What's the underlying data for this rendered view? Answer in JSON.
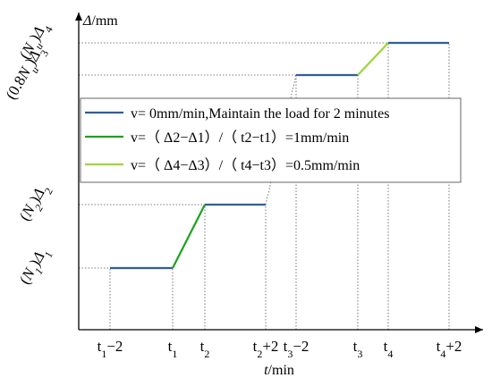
{
  "chart_data": {
    "type": "line",
    "axes": {
      "y_title": {
        "sym": "Δ",
        "unit": "/mm"
      },
      "x_title": {
        "sym": "t",
        "unit": "/min"
      }
    },
    "x_ticks": [
      {
        "base": "t",
        "sub": "1",
        "suffix": "−2"
      },
      {
        "base": "t",
        "sub": "1",
        "suffix": ""
      },
      {
        "base": "t",
        "sub": "2",
        "suffix": ""
      },
      {
        "base": "t",
        "sub": "2",
        "suffix": "+2"
      },
      {
        "base": "t",
        "sub": "3",
        "suffix": "−2"
      },
      {
        "base": "t",
        "sub": "3",
        "suffix": ""
      },
      {
        "base": "t",
        "sub": "4",
        "suffix": ""
      },
      {
        "base": "t",
        "sub": "4",
        "suffix": "+2"
      }
    ],
    "y_levels": [
      {
        "pre": "(",
        "N": "N",
        "Nsub": "1",
        "post": ")Δ",
        "sub": "1"
      },
      {
        "pre": "(",
        "N": "N",
        "Nsub": "2",
        "post": ")Δ",
        "sub": "2"
      },
      {
        "pre": "(0.8",
        "N": "N",
        "Nsub": "u",
        "post": ")Δ",
        "sub": "3"
      },
      {
        "pre": "(",
        "N": "N",
        "Nsub": "u",
        "post": ")Δ",
        "sub": "4"
      }
    ],
    "segments": [
      {
        "from": [
          0,
          0
        ],
        "to": [
          1,
          0
        ],
        "style": "hold"
      },
      {
        "from": [
          1,
          0
        ],
        "to": [
          2,
          1
        ],
        "style": "fast"
      },
      {
        "from": [
          2,
          1
        ],
        "to": [
          3,
          1
        ],
        "style": "hold"
      },
      {
        "from": [
          4,
          2
        ],
        "to": [
          5,
          2
        ],
        "style": "hold"
      },
      {
        "from": [
          5,
          2
        ],
        "to": [
          6,
          3
        ],
        "style": "slow"
      },
      {
        "from": [
          6,
          3
        ],
        "to": [
          7,
          3
        ],
        "style": "hold"
      }
    ],
    "colors": {
      "hold": "#2e5e9e",
      "fast": "#1aa31a",
      "slow": "#9ad834"
    },
    "legend": [
      {
        "style": "hold",
        "text": "v= 0mm/min,Maintain the load for 2 minutes"
      },
      {
        "style": "fast",
        "text": "v=（ Δ2−Δ1）/（ t2−t1）=1mm/min"
      },
      {
        "style": "slow",
        "text": "v=（ Δ4−Δ3）/（ t4−t3）=0.5mm/min"
      }
    ]
  }
}
